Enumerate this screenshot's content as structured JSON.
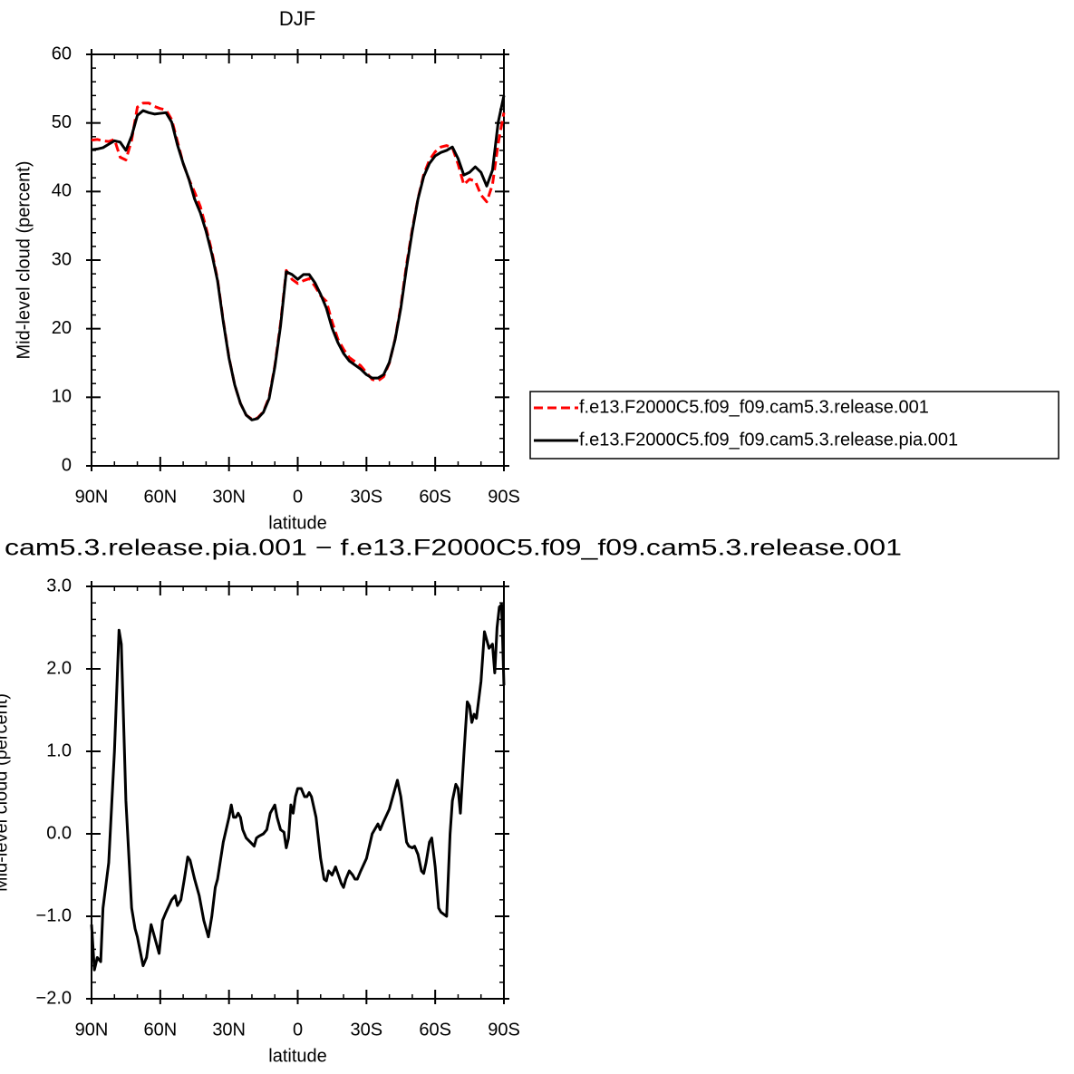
{
  "chart_data": [
    {
      "type": "line",
      "title": "DJF",
      "xlabel": "latitude",
      "ylabel": "Mid-level cloud (percent)",
      "x": [
        90,
        87.5,
        85,
        82.5,
        80,
        77.5,
        75,
        72.5,
        70,
        67.5,
        65,
        62.5,
        60,
        57.5,
        55,
        52.5,
        50,
        47.5,
        45,
        42.5,
        40,
        37.5,
        35,
        32.5,
        30,
        27.5,
        25,
        22.5,
        20,
        17.5,
        15,
        12.5,
        10,
        7.5,
        5,
        2.5,
        0,
        -2.5,
        -5,
        -7.5,
        -10,
        -12.5,
        -15,
        -17.5,
        -20,
        -22.5,
        -25,
        -27.5,
        -30,
        -32.5,
        -35,
        -37.5,
        -40,
        -42.5,
        -45,
        -47.5,
        -50,
        -52.5,
        -55,
        -57.5,
        -60,
        -62.5,
        -65,
        -67.5,
        -70,
        -72.5,
        -75,
        -77.5,
        -80,
        -82.5,
        -85,
        -87.5,
        -90
      ],
      "series": [
        {
          "name": "f.e13.F2000C5.f09_f09.cam5.3.release.001",
          "color": "#ff0000",
          "style": "dashed",
          "values": [
            47.5,
            47.6,
            47.4,
            47.3,
            47.6,
            45,
            44.6,
            47.5,
            52.3,
            52.9,
            52.9,
            52.4,
            52.1,
            51.9,
            50.5,
            47.3,
            44.1,
            41.8,
            39.9,
            37.8,
            34.7,
            31.3,
            27.2,
            21.2,
            15.8,
            11.8,
            9.1,
            7.4,
            6.8,
            7,
            7.9,
            10,
            14.6,
            20.8,
            28.5,
            27.2,
            26.6,
            27,
            27.3,
            26.2,
            24.8,
            24,
            21,
            18.5,
            17,
            15.8,
            15.2,
            14.6,
            13.6,
            12.6,
            12.4,
            13,
            15,
            18.5,
            23.3,
            29.4,
            34.5,
            39,
            42.5,
            44.6,
            45.8,
            46.5,
            46.7,
            46.4,
            44,
            41,
            41.8,
            41.5,
            39.5,
            38.5,
            41,
            47,
            51.5
          ]
        },
        {
          "name": "f.e13.F2000C5.f09_f09.cam5.3.release.pia.001",
          "color": "#000000",
          "style": "solid",
          "values": [
            46.1,
            46.2,
            46.4,
            46.9,
            47.4,
            47.2,
            46,
            48.1,
            51.1,
            51.8,
            51.5,
            51.3,
            51.4,
            51.5,
            50.1,
            46.8,
            44.1,
            41.8,
            38.9,
            36.9,
            34.2,
            30.9,
            27,
            21,
            15.7,
            11.8,
            9.1,
            7.4,
            6.7,
            6.9,
            7.8,
            9.8,
            14.4,
            20.4,
            28.3,
            27.9,
            27.2,
            27.9,
            27.9,
            26.7,
            25,
            23,
            20.1,
            18,
            16.4,
            15.3,
            14.7,
            14.1,
            13.3,
            12.8,
            12.8,
            13.3,
            15.1,
            18.4,
            23,
            28.9,
            34.2,
            38.9,
            42.2,
            44.1,
            45.2,
            45.7,
            46,
            46.5,
            44.8,
            42.4,
            42.8,
            43.6,
            42.8,
            40.8,
            43.1,
            50.1,
            54
          ]
        }
      ],
      "xlim": [
        90,
        -90
      ],
      "xticks": [
        {
          "value": 90,
          "label": "90N"
        },
        {
          "value": 60,
          "label": "60N"
        },
        {
          "value": 30,
          "label": "30N"
        },
        0,
        {
          "value": -30,
          "label": "30S"
        },
        {
          "value": -60,
          "label": "60S"
        },
        {
          "value": -90,
          "label": "90S"
        }
      ],
      "ylim": [
        0,
        60
      ],
      "yticks": [
        0,
        10,
        20,
        30,
        40,
        50,
        60
      ],
      "legend_position": "right"
    },
    {
      "type": "line",
      "title": "cam5.3.release.pia.001 − f.e13.F2000C5.f09_f09.cam5.3.release.001",
      "xlabel": "latitude",
      "ylabel": "Mid-level cloud (percent)",
      "x": [
        90,
        88.75,
        87.5,
        86,
        85,
        82.5,
        80,
        78,
        77,
        75,
        72.5,
        71,
        70,
        67.5,
        66,
        64,
        62,
        60.5,
        59,
        57.5,
        55,
        53.5,
        52.5,
        51,
        49.5,
        48,
        47,
        45,
        43,
        41,
        40,
        39,
        37.5,
        36,
        35,
        32.5,
        30,
        29,
        28,
        27,
        26,
        25,
        24,
        22.5,
        20,
        19,
        18,
        17,
        15,
        13.5,
        12,
        10,
        9,
        7.5,
        6,
        5,
        4,
        3,
        2,
        1,
        0,
        -1.5,
        -3,
        -4,
        -5,
        -6,
        -8,
        -10,
        -11.5,
        -12.5,
        -13.5,
        -15,
        -16.5,
        -17.5,
        -19,
        -20,
        -21,
        -22.5,
        -24,
        -25,
        -26,
        -27.5,
        -30,
        -32.5,
        -35,
        -36,
        -37.5,
        -40,
        -42.5,
        -43.5,
        -45,
        -47.5,
        -48.5,
        -50,
        -51,
        -52.5,
        -54,
        -55,
        -56,
        -57.5,
        -58.5,
        -60,
        -61.5,
        -62.5,
        -65,
        -66.5,
        -67.5,
        -69,
        -70,
        -71,
        -72.5,
        -74,
        -75,
        -76,
        -77,
        -78,
        -80,
        -81.5,
        -82.5,
        -83.5,
        -85,
        -86,
        -87,
        -88,
        -89,
        -90
      ],
      "color": "#000000",
      "values": [
        -1.1,
        -1.65,
        -1.5,
        -1.55,
        -0.9,
        -0.35,
        1.0,
        2.47,
        2.3,
        0.4,
        -0.9,
        -1.15,
        -1.25,
        -1.6,
        -1.5,
        -1.1,
        -1.3,
        -1.45,
        -1.05,
        -0.95,
        -0.8,
        -0.75,
        -0.87,
        -0.8,
        -0.55,
        -0.28,
        -0.32,
        -0.55,
        -0.75,
        -1.05,
        -1.15,
        -1.25,
        -1.0,
        -0.65,
        -0.55,
        -0.1,
        0.2,
        0.35,
        0.2,
        0.2,
        0.25,
        0.2,
        0.05,
        -0.05,
        -0.12,
        -0.15,
        -0.05,
        -0.03,
        0.0,
        0.05,
        0.25,
        0.35,
        0.2,
        0.05,
        0.02,
        -0.17,
        -0.05,
        0.35,
        0.25,
        0.45,
        0.55,
        0.55,
        0.45,
        0.45,
        0.5,
        0.45,
        0.2,
        -0.3,
        -0.55,
        -0.57,
        -0.45,
        -0.5,
        -0.4,
        -0.48,
        -0.6,
        -0.65,
        -0.55,
        -0.45,
        -0.5,
        -0.55,
        -0.55,
        -0.45,
        -0.3,
        0.0,
        0.12,
        0.05,
        0.15,
        0.3,
        0.55,
        0.65,
        0.45,
        -0.1,
        -0.15,
        -0.17,
        -0.15,
        -0.25,
        -0.45,
        -0.48,
        -0.35,
        -0.1,
        -0.05,
        -0.4,
        -0.9,
        -0.95,
        -1.0,
        0.0,
        0.4,
        0.6,
        0.55,
        0.25,
        0.95,
        1.6,
        1.55,
        1.35,
        1.45,
        1.4,
        1.85,
        2.45,
        2.35,
        2.25,
        2.3,
        1.95,
        2.5,
        2.75,
        2.78,
        1.8
      ],
      "xlim": [
        90,
        -90
      ],
      "xticks": [
        {
          "value": 90,
          "label": "90N"
        },
        {
          "value": 60,
          "label": "60N"
        },
        {
          "value": 30,
          "label": "30N"
        },
        0,
        {
          "value": -30,
          "label": "30S"
        },
        {
          "value": -60,
          "label": "60S"
        },
        {
          "value": -90,
          "label": "90S"
        }
      ],
      "ylim": [
        -2,
        3
      ],
      "yticks": [
        {
          "value": -2,
          "label": "−2.0"
        },
        {
          "value": -1,
          "label": "−1.0"
        },
        {
          "value": 0,
          "label": "0.0"
        },
        {
          "value": 1,
          "label": "1.0"
        },
        {
          "value": 2,
          "label": "2.0"
        },
        {
          "value": 3,
          "label": "3.0"
        }
      ]
    }
  ]
}
